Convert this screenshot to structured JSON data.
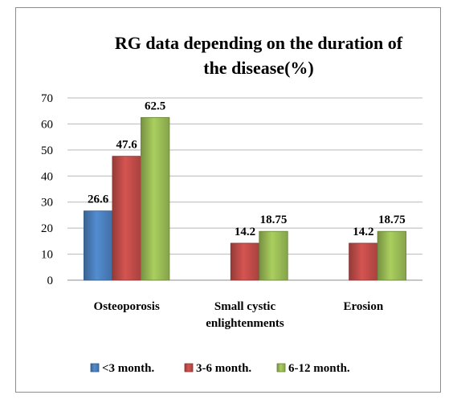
{
  "chart_data": {
    "type": "bar",
    "title": "RG data depending on the duration of the disease(%)",
    "title_lines": [
      "RG data depending on the duration of",
      "the disease(%)"
    ],
    "categories": [
      "Osteoporosis",
      "Small cystic enlightenments",
      "Erosion"
    ],
    "category_lines": [
      [
        "Osteoporosis"
      ],
      [
        "Small cystic",
        "enlightenments"
      ],
      [
        "Erosion"
      ]
    ],
    "series": [
      {
        "name": "<3 month.",
        "color": "#4a7ebb",
        "values": [
          26.6,
          null,
          null
        ],
        "labels": [
          "26.6",
          "",
          ""
        ]
      },
      {
        "name": "3-6 month.",
        "color": "#be4b48",
        "values": [
          47.6,
          14.2,
          14.2
        ],
        "labels": [
          "47.6",
          "14.2",
          "14.2"
        ]
      },
      {
        "name": "6-12 month.",
        "color": "#98b954",
        "values": [
          62.5,
          18.75,
          18.75
        ],
        "labels": [
          "62.5",
          "18.75",
          "18.75"
        ]
      }
    ],
    "ylim": [
      0,
      70
    ],
    "yticks": [
      0,
      10,
      20,
      30,
      40,
      50,
      60,
      70
    ],
    "grid": true,
    "legend": "bottom",
    "xlabel": "",
    "ylabel": ""
  }
}
